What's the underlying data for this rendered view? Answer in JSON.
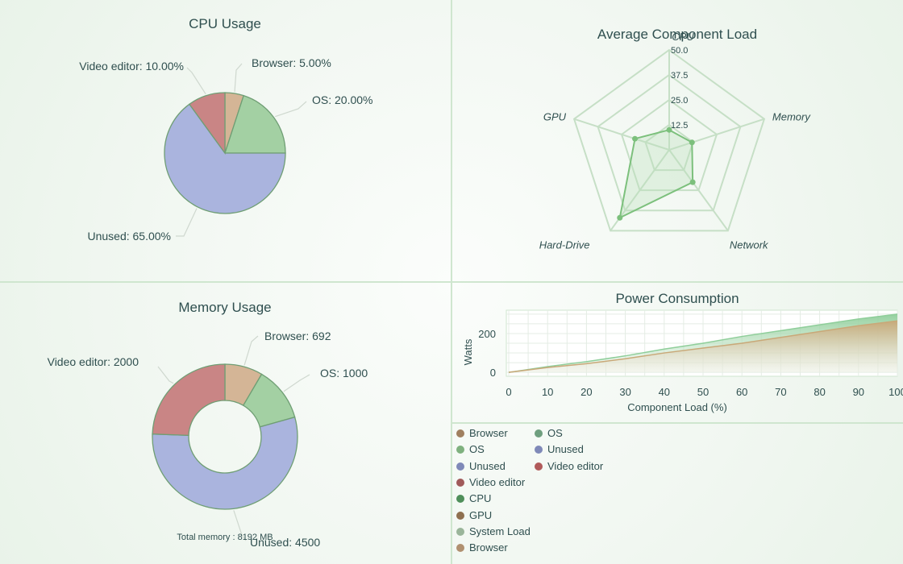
{
  "chart_data": [
    {
      "type": "pie",
      "title": "CPU Usage",
      "slices": [
        {
          "label": "Browser",
          "value": 5.0,
          "text": "Browser: 5.00%",
          "color": "#d4b596"
        },
        {
          "label": "OS",
          "value": 20.0,
          "text": "OS: 20.00%",
          "color": "#a3d0a3"
        },
        {
          "label": "Unused",
          "value": 65.0,
          "text": "Unused: 65.00%",
          "color": "#aab4de"
        },
        {
          "label": "Video editor",
          "value": 10.0,
          "text": "Video editor: 10.00%",
          "color": "#c98585"
        }
      ]
    },
    {
      "type": "radar",
      "title": "Average Component Load",
      "axes": [
        "CPU",
        "Memory",
        "Network",
        "Hard-Drive",
        "GPU"
      ],
      "ticks": [
        "12.5",
        "25.0",
        "37.5",
        "50.0"
      ],
      "rmax": 50,
      "values": [
        10,
        12,
        20,
        42,
        18
      ],
      "color": "#7cc07c"
    },
    {
      "type": "donut",
      "title": "Memory Usage",
      "footer": "Total memory : 8192 MB",
      "slices": [
        {
          "label": "Browser",
          "value": 692,
          "text": "Browser: 692",
          "color": "#d4b596"
        },
        {
          "label": "OS",
          "value": 1000,
          "text": "OS: 1000",
          "color": "#a3d0a3"
        },
        {
          "label": "Unused",
          "value": 4500,
          "text": "Unused: 4500",
          "color": "#aab4de"
        },
        {
          "label": "Video editor",
          "value": 2000,
          "text": "Video editor: 2000",
          "color": "#c98585"
        }
      ]
    },
    {
      "type": "area",
      "title": "Power Consumption",
      "xlabel": "Component Load (%)",
      "ylabel": "Watts",
      "x": [
        0,
        10,
        20,
        30,
        40,
        50,
        60,
        70,
        80,
        90,
        100
      ],
      "xticks": [
        "0",
        "10",
        "20",
        "30",
        "40",
        "50",
        "60",
        "70",
        "80",
        "90",
        "100"
      ],
      "yticks": [
        "0",
        "200"
      ],
      "xlim": [
        0,
        100
      ],
      "ylim": [
        -20,
        320
      ],
      "series": [
        {
          "name": "CPU",
          "values": [
            0,
            30,
            55,
            85,
            120,
            150,
            185,
            215,
            245,
            275,
            300
          ],
          "color": "#8fce9a"
        },
        {
          "name": "GPU",
          "values": [
            0,
            25,
            45,
            70,
            100,
            125,
            150,
            180,
            210,
            240,
            265
          ],
          "color": "#c9a878"
        }
      ]
    }
  ],
  "legend": {
    "left": [
      {
        "label": "Browser",
        "color": "#a08060"
      },
      {
        "label": "OS",
        "color": "#7fb17f"
      },
      {
        "label": "Unused",
        "color": "#7f89b8"
      },
      {
        "label": "Video editor",
        "color": "#a05a5a"
      },
      {
        "label": "CPU",
        "color": "#4f8f5a"
      },
      {
        "label": "GPU",
        "color": "#8f7050"
      },
      {
        "label": "System Load",
        "color": "#9ab59a"
      },
      {
        "label": "Browser",
        "color": "#b09070"
      }
    ],
    "right": [
      {
        "label": "OS",
        "color": "#6f9f7f"
      },
      {
        "label": "Unused",
        "color": "#7f89b8"
      },
      {
        "label": "Video editor",
        "color": "#b05a5a"
      }
    ]
  }
}
